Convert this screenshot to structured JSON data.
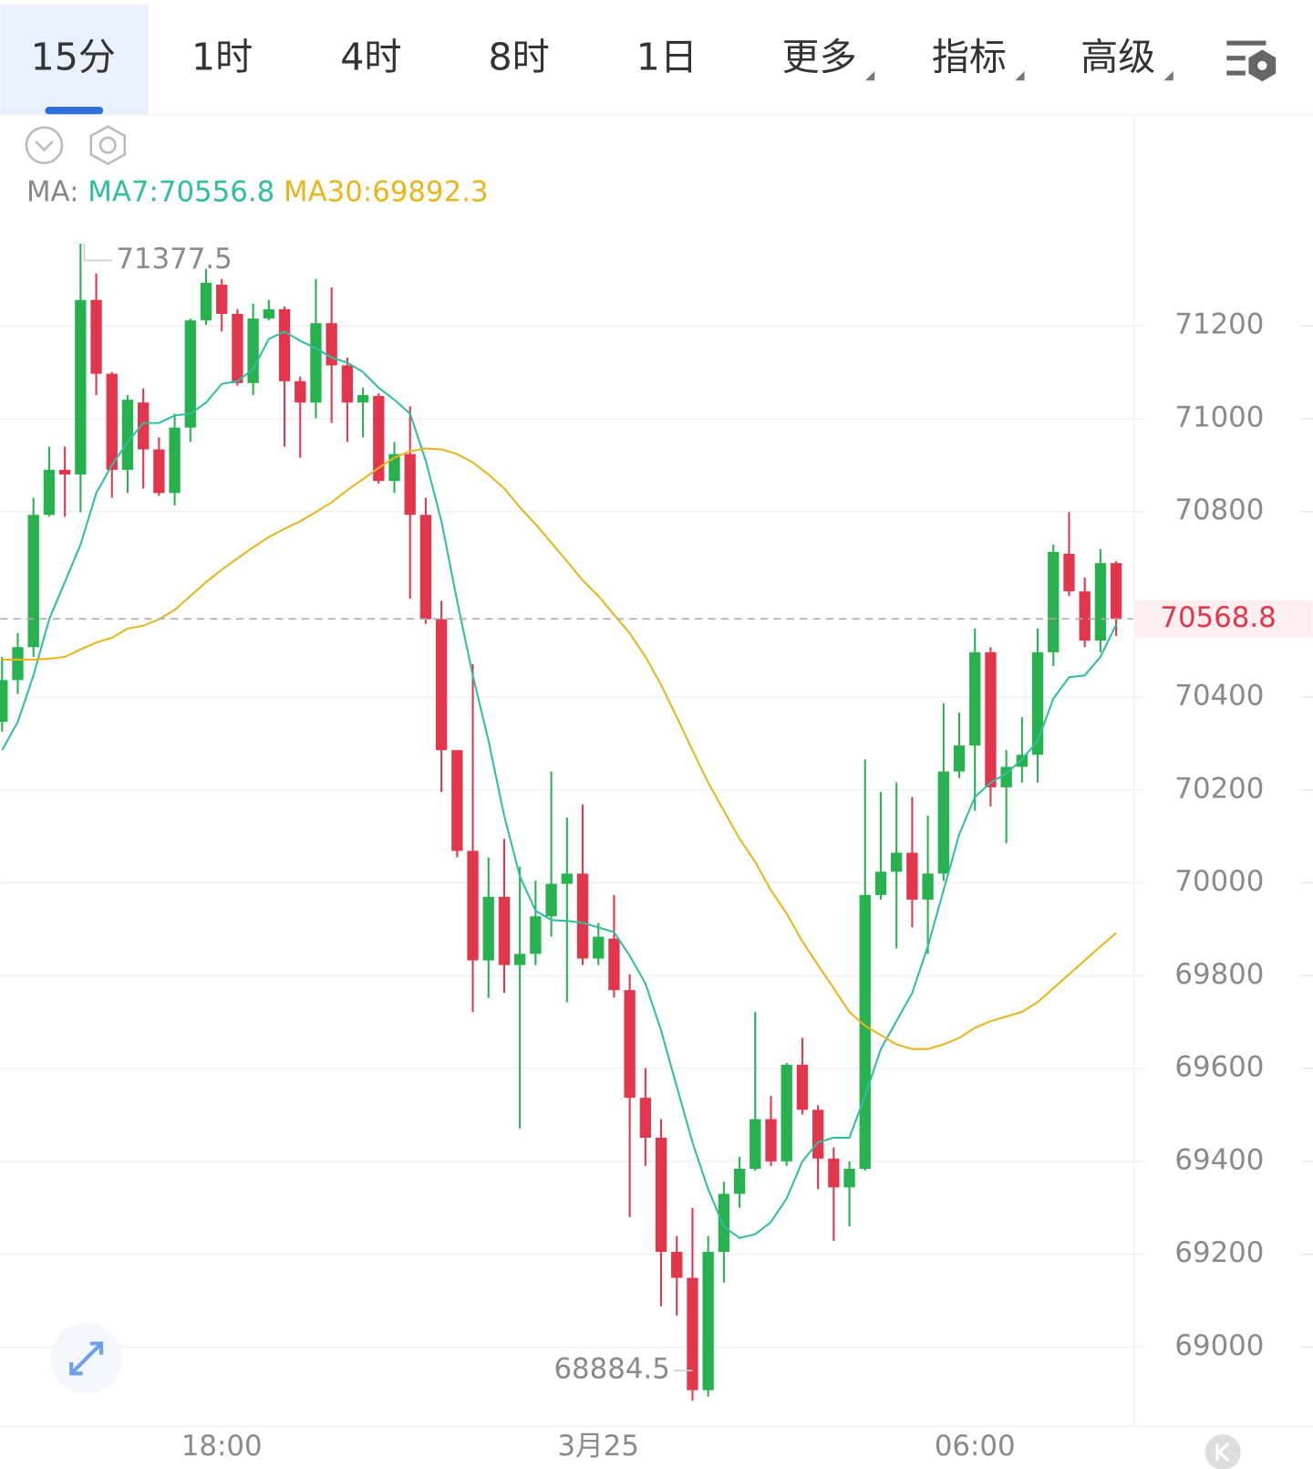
{
  "tabs": [
    "15分",
    "1时",
    "4时",
    "8时",
    "1日",
    "更多",
    "指标",
    "高级"
  ],
  "active_tab": 0,
  "indicator_label": "MA:",
  "chart_data": {
    "type": "candlestick",
    "categories": [
      null,
      null,
      null,
      null,
      null,
      null,
      null,
      null,
      null,
      null,
      null,
      null,
      null,
      null,
      "18:00",
      null,
      null,
      null,
      null,
      null,
      null,
      null,
      null,
      null,
      null,
      null,
      null,
      null,
      null,
      null,
      null,
      null,
      null,
      null,
      null,
      null,
      null,
      null,
      "3月25",
      null,
      null,
      null,
      null,
      null,
      null,
      null,
      null,
      null,
      null,
      null,
      null,
      null,
      null,
      null,
      null,
      null,
      null,
      null,
      null,
      null,
      null,
      null,
      "06:00",
      null,
      null,
      null,
      null,
      null,
      null,
      null,
      null,
      null
    ],
    "open": [
      70347,
      70437,
      70508,
      70793,
      70890,
      70880,
      71256,
      71097,
      70890,
      71035,
      70934,
      70840,
      70981,
      71212,
      71289,
      71226,
      71077,
      71216,
      71236,
      71081,
      71035,
      71206,
      71115,
      71035,
      71049,
      70866,
      70924,
      70793,
      70568,
      70286,
      70069,
      69833,
      69970,
      69823,
      69847,
      69928,
      69998,
      70020,
      69837,
      69880,
      69769,
      69537,
      69451,
      69205,
      69149,
      68907,
      69205,
      69330,
      69384,
      69491,
      69400,
      69608,
      69511,
      69406,
      69344,
      69384,
      69974,
      70024,
      70065,
      69964,
      70020,
      70240,
      70296,
      70497,
      70206,
      70250,
      70276,
      70497,
      70709,
      70628,
      70522,
      70689
    ],
    "high": [
      70487,
      70538,
      70830,
      70940,
      70940,
      71377.5,
      71313,
      71101,
      71051,
      71065,
      70960,
      71011,
      71216,
      71323,
      71301,
      71236,
      71248,
      71256,
      71242,
      71091,
      71301,
      71283,
      71132,
      71067,
      71055,
      70950,
      71027,
      70830,
      70608,
      70286,
      70471,
      70055,
      70095,
      70035,
      70005,
      70240,
      70141,
      70169,
      69914,
      69974,
      69803,
      69601,
      69491,
      69239,
      69300,
      69239,
      69356,
      69410,
      69722,
      69541,
      69612,
      69666,
      69521,
      69430,
      69400,
      70266,
      70196,
      70216,
      70185,
      70145,
      70387,
      70367,
      70548,
      70508,
      70286,
      70357,
      70548,
      70729,
      70799,
      70658,
      70719,
      70693
    ],
    "low": [
      70326,
      70407,
      70487,
      70789,
      70789,
      70799,
      71051,
      70830,
      70840,
      70850,
      70834,
      70813,
      70950,
      71202,
      71188,
      71071,
      71051,
      71212,
      70940,
      70916,
      71001,
      70991,
      70950,
      70960,
      70860,
      70840,
      70612,
      70558,
      70196,
      70055,
      69722,
      69752,
      69763,
      69471,
      69823,
      69884,
      69743,
      69823,
      69823,
      69753,
      69280,
      69390,
      69088,
      69068,
      68884.5,
      68893,
      69139,
      69300,
      69380,
      69390,
      69390,
      69501,
      69340,
      69229,
      69260,
      69380,
      69964,
      69859,
      69904,
      69847,
      70004,
      70226,
      70155,
      70165,
      70085,
      70216,
      70216,
      70467,
      70618,
      70508,
      70497,
      70532
    ],
    "close": [
      70437,
      70508,
      70793,
      70890,
      70880,
      71256,
      71097,
      70890,
      71041,
      70934,
      70840,
      70981,
      71212,
      71293,
      71226,
      71077,
      71216,
      71236,
      71081,
      71035,
      71206,
      71115,
      71035,
      71051,
      70866,
      70924,
      70793,
      70568,
      70286,
      70069,
      69833,
      69970,
      69823,
      69847,
      69928,
      69998,
      70020,
      69837,
      69884,
      69769,
      69537,
      69451,
      69205,
      69149,
      68907,
      69205,
      69330,
      69384,
      69491,
      69400,
      69608,
      69511,
      69406,
      69344,
      69384,
      69974,
      70024,
      70065,
      69964,
      70020,
      70240,
      70296,
      70497,
      70206,
      70250,
      70276,
      70497,
      70713,
      70628,
      70522,
      70689,
      70568.8
    ],
    "up_color": "#27b24f",
    "down_color": "#e2364c",
    "overlays": [
      {
        "name": "MA7:70556.8",
        "color": "#2fbf9f",
        "values": [
          70286,
          70347,
          70447,
          70568,
          70648,
          70729,
          70840,
          70900,
          70950,
          70991,
          70991,
          71007,
          71011,
          71035,
          71075,
          71081,
          71107,
          71172,
          71188,
          71168,
          71152,
          71132,
          71121,
          71101,
          71067,
          71041,
          71011,
          70910,
          70779,
          70608,
          70447,
          70306,
          70145,
          70014,
          69940,
          69920,
          69918,
          69914,
          69904,
          69894,
          69843,
          69783,
          69682,
          69561,
          69441,
          69340,
          69259,
          69235,
          69243,
          69269,
          69320,
          69400,
          69441,
          69451,
          69451,
          69541,
          69642,
          69702,
          69763,
          69863,
          69984,
          70105,
          70185,
          70216,
          70236,
          70266,
          70306,
          70397,
          70443,
          70447,
          70487,
          70556.8
        ]
      },
      {
        "name": "MA30:69892.3",
        "color": "#e8b51c",
        "values": [
          70481,
          70481,
          70481,
          70483,
          70487,
          70503,
          70518,
          70528,
          70548,
          70554,
          70568,
          70588,
          70618,
          70648,
          70675,
          70699,
          70723,
          70745,
          70763,
          70779,
          70799,
          70820,
          70846,
          70870,
          70894,
          70916,
          70930,
          70936,
          70934,
          70924,
          70906,
          70880,
          70850,
          70809,
          70773,
          70733,
          70693,
          70652,
          70618,
          70578,
          70538,
          70487,
          70427,
          70357,
          70286,
          70216,
          70155,
          70095,
          70045,
          69984,
          69934,
          69874,
          69823,
          69773,
          69722,
          69692,
          69672,
          69652,
          69642,
          69642,
          69652,
          69666,
          69688,
          69702,
          69712,
          69722,
          69743,
          69773,
          69803,
          69833,
          69863,
          69892.3
        ]
      }
    ],
    "ylim": [
      68830,
      71650
    ],
    "yticks": [
      69000,
      69200,
      69400,
      69600,
      69800,
      70000,
      70200,
      70400,
      70800,
      71000,
      71200
    ],
    "grid": true
  }
}
